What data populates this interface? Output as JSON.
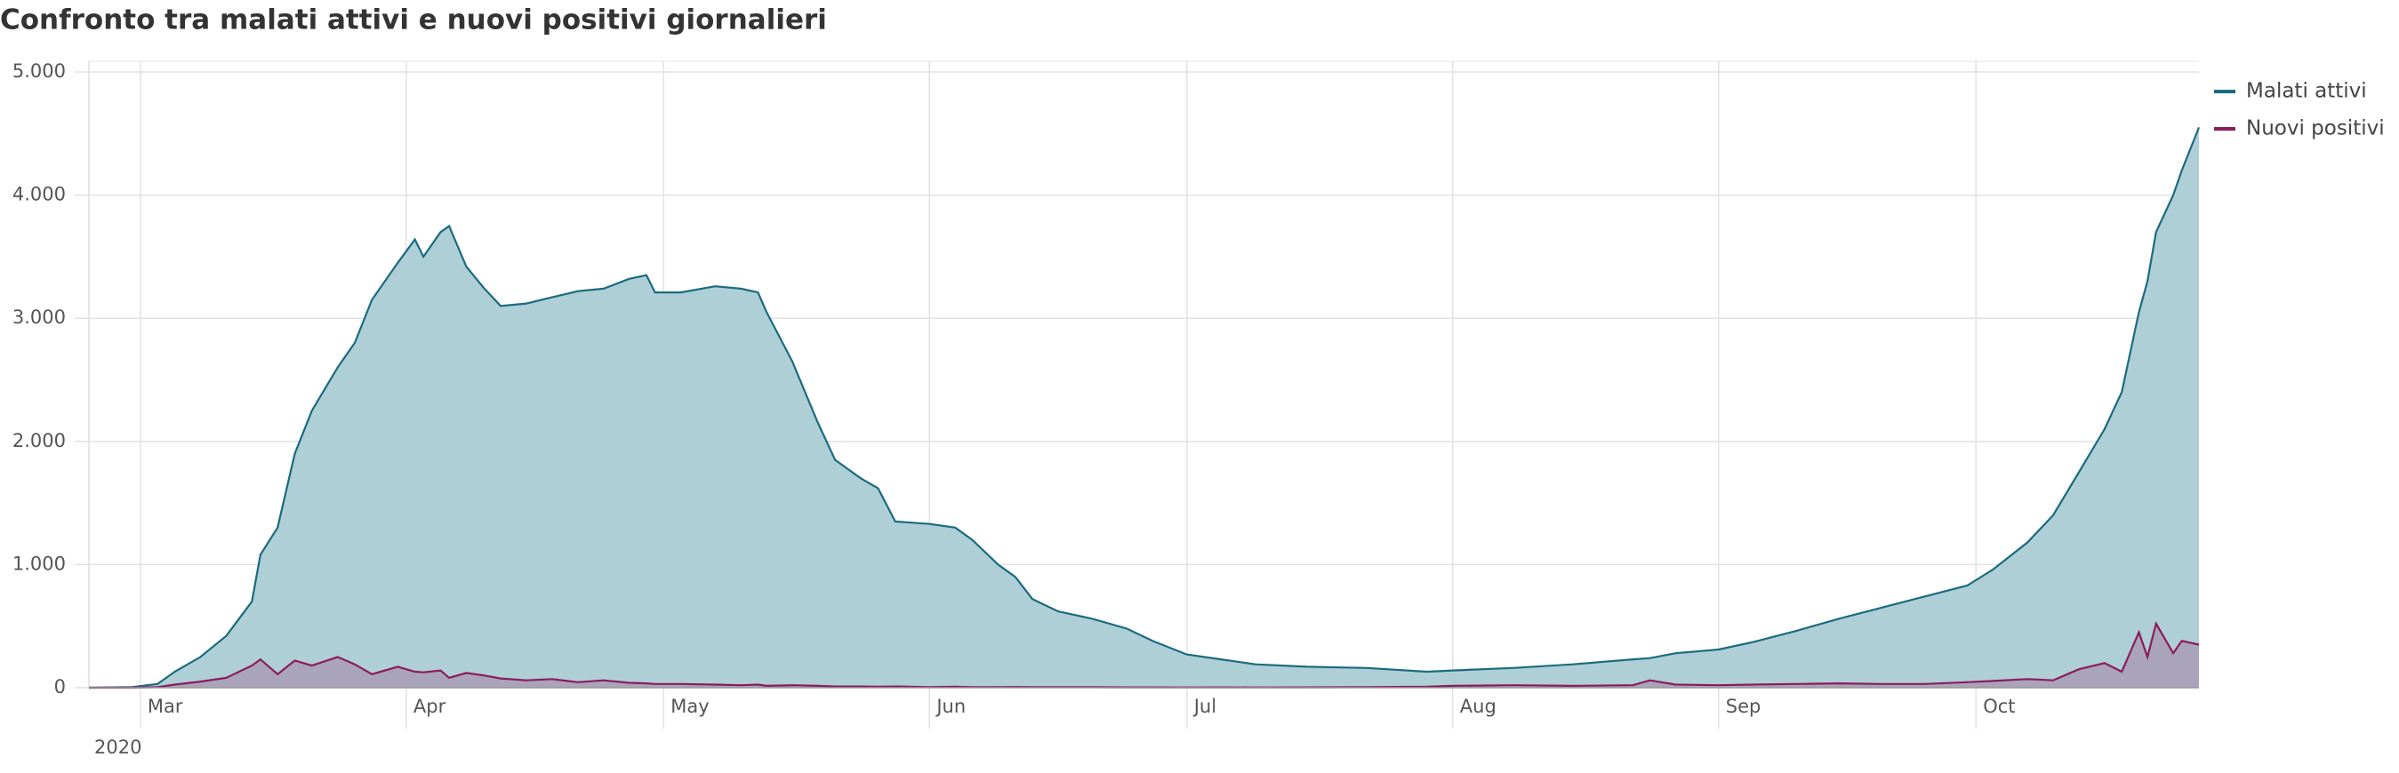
{
  "chart_data": {
    "type": "area",
    "title": "Confronto tra malati attivi e nuovi positivi giornalieri",
    "x_year_label": "2020",
    "x": [
      "2020-02-24",
      "2020-02-29",
      "2020-03-03",
      "2020-03-05",
      "2020-03-08",
      "2020-03-11",
      "2020-03-14",
      "2020-03-15",
      "2020-03-17",
      "2020-03-19",
      "2020-03-21",
      "2020-03-24",
      "2020-03-26",
      "2020-03-28",
      "2020-03-31",
      "2020-04-02",
      "2020-04-03",
      "2020-04-05",
      "2020-04-06",
      "2020-04-08",
      "2020-04-10",
      "2020-04-12",
      "2020-04-15",
      "2020-04-18",
      "2020-04-21",
      "2020-04-24",
      "2020-04-27",
      "2020-04-29",
      "2020-04-30",
      "2020-05-03",
      "2020-05-07",
      "2020-05-10",
      "2020-05-12",
      "2020-05-13",
      "2020-05-16",
      "2020-05-19",
      "2020-05-21",
      "2020-05-24",
      "2020-05-26",
      "2020-05-28",
      "2020-06-01",
      "2020-06-04",
      "2020-06-06",
      "2020-06-09",
      "2020-06-11",
      "2020-06-13",
      "2020-06-16",
      "2020-06-20",
      "2020-06-24",
      "2020-06-27",
      "2020-07-01",
      "2020-07-05",
      "2020-07-09",
      "2020-07-15",
      "2020-07-22",
      "2020-07-29",
      "2020-08-01",
      "2020-08-08",
      "2020-08-15",
      "2020-08-22",
      "2020-08-24",
      "2020-08-27",
      "2020-09-01",
      "2020-09-05",
      "2020-09-10",
      "2020-09-15",
      "2020-09-20",
      "2020-09-25",
      "2020-09-30",
      "2020-10-03",
      "2020-10-07",
      "2020-10-10",
      "2020-10-13",
      "2020-10-16",
      "2020-10-18",
      "2020-10-20",
      "2020-10-21",
      "2020-10-22",
      "2020-10-24",
      "2020-10-25",
      "2020-10-27"
    ],
    "series": [
      {
        "name": "Malati attivi",
        "color": "#1b6b80",
        "fill": "#afcfd7",
        "values": [
          0,
          5,
          30,
          130,
          250,
          420,
          700,
          1080,
          1300,
          1900,
          2250,
          2600,
          2800,
          3150,
          3450,
          3640,
          3500,
          3700,
          3750,
          3420,
          3250,
          3100,
          3120,
          3170,
          3220,
          3240,
          3320,
          3350,
          3210,
          3210,
          3260,
          3240,
          3210,
          3050,
          2650,
          2150,
          1850,
          1700,
          1620,
          1350,
          1330,
          1300,
          1200,
          1000,
          900,
          720,
          620,
          560,
          480,
          380,
          270,
          230,
          190,
          170,
          160,
          130,
          140,
          160,
          190,
          230,
          240,
          280,
          310,
          370,
          460,
          560,
          650,
          740,
          830,
          960,
          1180,
          1400,
          1750,
          2100,
          2400,
          3050,
          3300,
          3700,
          4000,
          4200,
          4550
        ]
      },
      {
        "name": "Nuovi positivi",
        "color": "#8c1b5c",
        "fill": "#a899b5",
        "values": [
          0,
          0,
          5,
          25,
          50,
          80,
          180,
          230,
          110,
          220,
          180,
          250,
          190,
          110,
          170,
          130,
          125,
          140,
          80,
          120,
          100,
          75,
          60,
          70,
          45,
          60,
          40,
          35,
          30,
          30,
          25,
          20,
          25,
          15,
          20,
          15,
          10,
          10,
          8,
          10,
          5,
          8,
          5,
          5,
          6,
          4,
          5,
          4,
          3,
          3,
          2,
          3,
          2,
          3,
          5,
          8,
          15,
          20,
          15,
          20,
          60,
          25,
          20,
          25,
          30,
          35,
          30,
          30,
          45,
          55,
          70,
          60,
          150,
          200,
          130,
          450,
          250,
          520,
          280,
          380,
          350
        ]
      }
    ],
    "xlim": [
      "2020-02-24",
      "2020-10-27"
    ],
    "xticks": [
      {
        "value": "2020-03-01",
        "label": "Mar"
      },
      {
        "value": "2020-04-01",
        "label": "Apr"
      },
      {
        "value": "2020-05-01",
        "label": "May"
      },
      {
        "value": "2020-06-01",
        "label": "Jun"
      },
      {
        "value": "2020-07-01",
        "label": "Jul"
      },
      {
        "value": "2020-08-01",
        "label": "Aug"
      },
      {
        "value": "2020-09-01",
        "label": "Sep"
      },
      {
        "value": "2020-10-01",
        "label": "Oct"
      }
    ],
    "ylim": [
      0,
      5000
    ],
    "yticks": [
      0,
      {
        "value": 1000,
        "label": "1.000"
      },
      {
        "value": 2000,
        "label": "2.000"
      },
      {
        "value": 3000,
        "label": "3.000"
      },
      {
        "value": 4000,
        "label": "4.000"
      },
      {
        "value": 5000,
        "label": "5.000"
      }
    ],
    "grid": true,
    "legend": "top-right"
  }
}
